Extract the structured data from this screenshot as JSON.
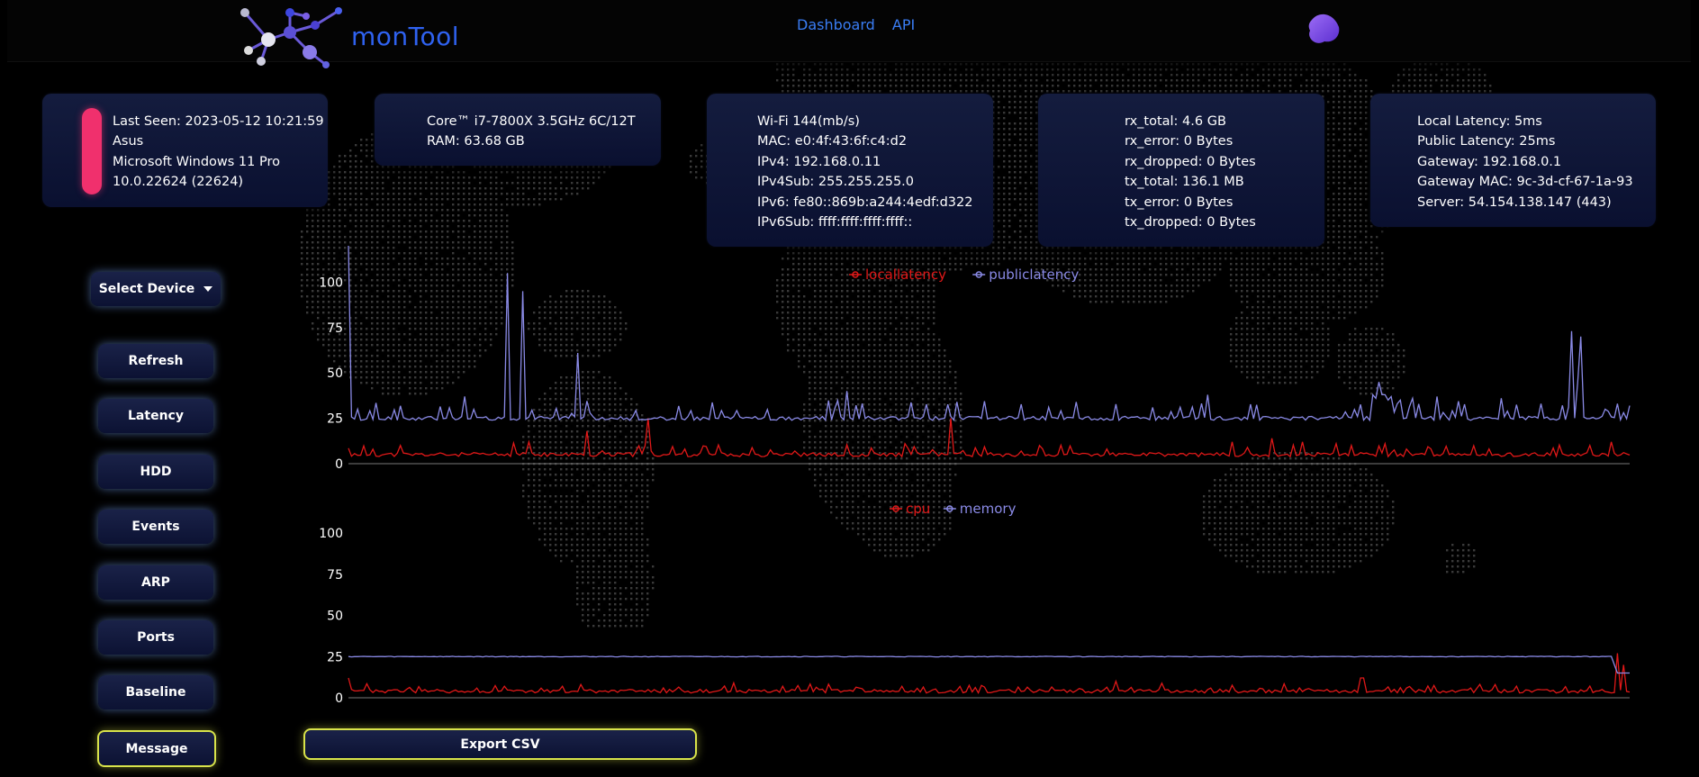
{
  "app": {
    "brand": "monTool"
  },
  "nav": {
    "dashboard": "Dashboard",
    "api": "API"
  },
  "cards": {
    "device": {
      "lines": [
        "Last Seen: 2023-05-12 10:21:59",
        "Asus",
        "Microsoft Windows 11 Pro",
        "10.0.22624 (22624)"
      ],
      "status_color": "#f0306d"
    },
    "hardware": {
      "lines": [
        "Core™ i7-7800X 3.5GHz 6C/12T",
        "RAM: 63.68 GB"
      ]
    },
    "network": {
      "lines": [
        "Wi-Fi 144(mb/s)",
        "MAC: e0:4f:43:6f:c4:d2",
        "IPv4: 192.168.0.11",
        "IPv4Sub: 255.255.255.0",
        "IPv6: fe80::869b:a244:4edf:d322",
        "IPv6Sub: ffff:ffff:ffff:ffff::"
      ]
    },
    "traffic": {
      "lines": [
        "rx_total: 4.6 GB",
        "rx_error: 0 Bytes",
        "rx_dropped: 0 Bytes",
        "tx_total: 136.1 MB",
        "tx_error: 0 Bytes",
        "tx_dropped: 0 Bytes"
      ]
    },
    "latency": {
      "lines": [
        "Local Latency: 5ms",
        "Public Latency: 25ms",
        "Gateway: 192.168.0.1",
        "Gateway MAC: 9c-3d-cf-67-1a-93",
        "Server: 54.154.138.147 (443)"
      ]
    }
  },
  "sidebar": {
    "select_device": "Select Device",
    "buttons": [
      "Refresh",
      "Latency",
      "HDD",
      "Events",
      "ARP",
      "Ports",
      "Baseline",
      "Message"
    ]
  },
  "export_button": "Export CSV",
  "colors": {
    "series_red": "#e01818",
    "series_purple": "#8a8ae6",
    "accent_blue": "#3a7df4",
    "highlight_yellow": "#d8e34a"
  },
  "chart_data": [
    {
      "type": "line",
      "series": [
        {
          "name": "locallatency",
          "color": "#e01818",
          "baseline": 5,
          "spikes": [
            [
              0.02,
              8
            ],
            [
              0.04,
              10
            ],
            [
              0.14,
              12
            ],
            [
              0.185,
              18
            ],
            [
              0.233,
              25
            ],
            [
              0.47,
              25
            ],
            [
              0.54,
              10
            ],
            [
              0.69,
              12
            ],
            [
              0.72,
              14
            ],
            [
              0.745,
              12
            ],
            [
              0.77,
              11
            ],
            [
              0.81,
              11
            ],
            [
              0.97,
              10
            ],
            [
              0.985,
              12
            ]
          ]
        },
        {
          "name": "publiclatency",
          "color": "#8a8ae6",
          "baseline": 25,
          "spikes": [
            [
              0.0,
              122
            ],
            [
              0.09,
              37
            ],
            [
              0.125,
              105
            ],
            [
              0.136,
              60
            ],
            [
              0.137,
              52
            ],
            [
              0.137,
              95
            ],
            [
              0.178,
              61
            ],
            [
              0.39,
              40
            ],
            [
              0.475,
              34
            ],
            [
              0.67,
              38
            ],
            [
              0.81,
              35
            ],
            [
              0.805,
              45
            ],
            [
              0.8,
              38
            ],
            [
              0.815,
              34
            ],
            [
              0.807,
              36
            ],
            [
              0.808,
              37
            ],
            [
              0.806,
              34
            ],
            [
              0.96,
              45
            ],
            [
              0.802,
              36
            ],
            [
              0.809,
              33
            ],
            [
              0.811,
              35
            ],
            [
              0.812,
              34
            ],
            [
              0.813,
              33
            ],
            [
              0.814,
              34
            ],
            [
              0.818,
              33
            ],
            [
              0.82,
              35
            ],
            [
              0.83,
              36
            ],
            [
              0.85,
              37
            ],
            [
              0.806,
              38
            ],
            [
              0.802,
              35
            ],
            [
              0.81,
              38
            ],
            [
              0.815,
              37
            ],
            [
              0.9,
              36
            ],
            [
              0.87,
              30
            ],
            [
              0.93,
              33
            ],
            [
              0.955,
              73
            ],
            [
              0.963,
              70
            ],
            [
              0.99,
              33
            ],
            [
              1.0,
              32
            ]
          ]
        }
      ],
      "ylim": [
        0,
        120
      ],
      "yticks": [
        "0",
        "25",
        "50",
        "75",
        "100"
      ]
    },
    {
      "type": "line",
      "series": [
        {
          "name": "cpu",
          "color": "#e01818",
          "baseline": 4,
          "spikes": [
            [
              0.0,
              12
            ],
            [
              0.3,
              9
            ],
            [
              0.6,
              10
            ],
            [
              0.79,
              10
            ],
            [
              0.79,
              8
            ],
            [
              0.79,
              9
            ],
            [
              0.79,
              11
            ],
            [
              0.79,
              9
            ],
            [
              0.79,
              10
            ],
            [
              0.79,
              9
            ],
            [
              0.79,
              11
            ],
            [
              0.79,
              9
            ],
            [
              0.79,
              12
            ],
            [
              0.79,
              10
            ],
            [
              0.79,
              9
            ],
            [
              0.79,
              11
            ],
            [
              0.79,
              9
            ],
            [
              0.79,
              10
            ],
            [
              0.79,
              12
            ],
            [
              0.79,
              9
            ],
            [
              0.79,
              10
            ],
            [
              0.79,
              11
            ],
            [
              0.79,
              9
            ],
            [
              0.79,
              10
            ],
            [
              0.79,
              12
            ],
            [
              0.79,
              9
            ],
            [
              0.79,
              10
            ],
            [
              0.79,
              11
            ],
            [
              0.79,
              9
            ],
            [
              0.79,
              10
            ],
            [
              0.79,
              12
            ],
            [
              0.79,
              9
            ],
            [
              0.79,
              10
            ],
            [
              0.79,
              11
            ],
            [
              0.79,
              9
            ],
            [
              0.79,
              10
            ],
            [
              0.79,
              12
            ],
            [
              0.79,
              9
            ],
            [
              0.79,
              10
            ],
            [
              0.79,
              11
            ],
            [
              0.79,
              9
            ],
            [
              0.79,
              10
            ],
            [
              0.79,
              12
            ],
            [
              0.79,
              9
            ],
            [
              0.79,
              10
            ],
            [
              0.79,
              11
            ],
            [
              0.79,
              9
            ],
            [
              0.79,
              10
            ],
            [
              0.79,
              12
            ],
            [
              0.79,
              9
            ],
            [
              0.79,
              10
            ],
            [
              0.79,
              11
            ],
            [
              0.79,
              9
            ],
            [
              0.79,
              10
            ],
            [
              0.79,
              12
            ],
            [
              0.79,
              9
            ],
            [
              0.79,
              10
            ],
            [
              0.79,
              11
            ],
            [
              0.79,
              9
            ],
            [
              0.79,
              10
            ],
            [
              0.79,
              12
            ],
            [
              0.79,
              9
            ],
            [
              0.79,
              10
            ],
            [
              0.79,
              11
            ],
            [
              0.79,
              9
            ],
            [
              0.79,
              10
            ],
            [
              0.79,
              12
            ],
            [
              0.79,
              9
            ],
            [
              0.79,
              10
            ],
            [
              0.79,
              11
            ],
            [
              0.79,
              9
            ],
            [
              0.79,
              10
            ],
            [
              0.79,
              12
            ],
            [
              0.79,
              9
            ],
            [
              0.79,
              10
            ],
            [
              0.79,
              11
            ],
            [
              0.79,
              9
            ],
            [
              0.79,
              10
            ],
            [
              0.79,
              12
            ],
            [
              0.79,
              9
            ],
            [
              0.79,
              10
            ],
            [
              0.79,
              11
            ],
            [
              0.79,
              9
            ],
            [
              0.79,
              10
            ],
            [
              0.79,
              12
            ],
            [
              0.79,
              9
            ],
            [
              0.79,
              10
            ],
            [
              0.79,
              11
            ],
            [
              0.79,
              9
            ],
            [
              0.79,
              10
            ],
            [
              0.79,
              12
            ],
            [
              0.793,
              12
            ],
            [
              0.99,
              27
            ],
            [
              0.995,
              20
            ]
          ]
        },
        {
          "name": "memory",
          "color": "#8a8ae6",
          "baseline": 25,
          "tail": 15
        }
      ],
      "ylim": [
        0,
        100
      ],
      "yticks": [
        "0",
        "25",
        "50",
        "75",
        "100"
      ]
    }
  ]
}
